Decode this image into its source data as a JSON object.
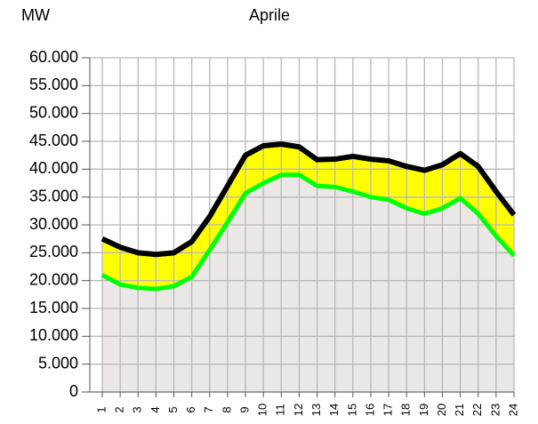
{
  "chart_data": {
    "type": "line",
    "y_label": "MW",
    "title": "Aprile",
    "categories": [
      "1",
      "2",
      "3",
      "4",
      "5",
      "6",
      "7",
      "8",
      "9",
      "10",
      "11",
      "12",
      "13",
      "14",
      "15",
      "16",
      "17",
      "18",
      "19",
      "20",
      "21",
      "22",
      "23",
      "24"
    ],
    "series": [
      {
        "color": "#000000",
        "values": [
          27500,
          26000,
          25000,
          24700,
          25000,
          27000,
          31500,
          37000,
          42500,
          44200,
          44500,
          44000,
          41700,
          41800,
          42300,
          41800,
          41500,
          40500,
          39800,
          40800,
          42800,
          40500,
          36000,
          31800
        ]
      },
      {
        "color": "#00ff00",
        "values": [
          21000,
          19300,
          18700,
          18500,
          19000,
          20700,
          25500,
          30500,
          35700,
          37500,
          39000,
          39000,
          37000,
          36800,
          36000,
          35000,
          34500,
          33000,
          32000,
          33000,
          34800,
          32000,
          28000,
          24500
        ]
      }
    ],
    "band_color": "#ffff00",
    "base_color": "#ebe7e7",
    "ylim": [
      0,
      60000
    ],
    "yticks": [
      0,
      {
        "value": 5000,
        "label": "5.000"
      },
      {
        "value": 10000,
        "label": "10.000"
      },
      {
        "value": 15000,
        "label": "15.000"
      },
      {
        "value": 20000,
        "label": "20.000"
      },
      {
        "value": 25000,
        "label": "25.000"
      },
      {
        "value": 30000,
        "label": "30.000"
      },
      {
        "value": 35000,
        "label": "35.000"
      },
      {
        "value": 40000,
        "label": "40.000"
      },
      {
        "value": 45000,
        "label": "45.000"
      },
      {
        "value": 50000,
        "label": "50.000"
      },
      {
        "value": 55000,
        "label": "55.000"
      },
      {
        "value": 60000,
        "label": "60.000"
      }
    ],
    "grid": true
  }
}
